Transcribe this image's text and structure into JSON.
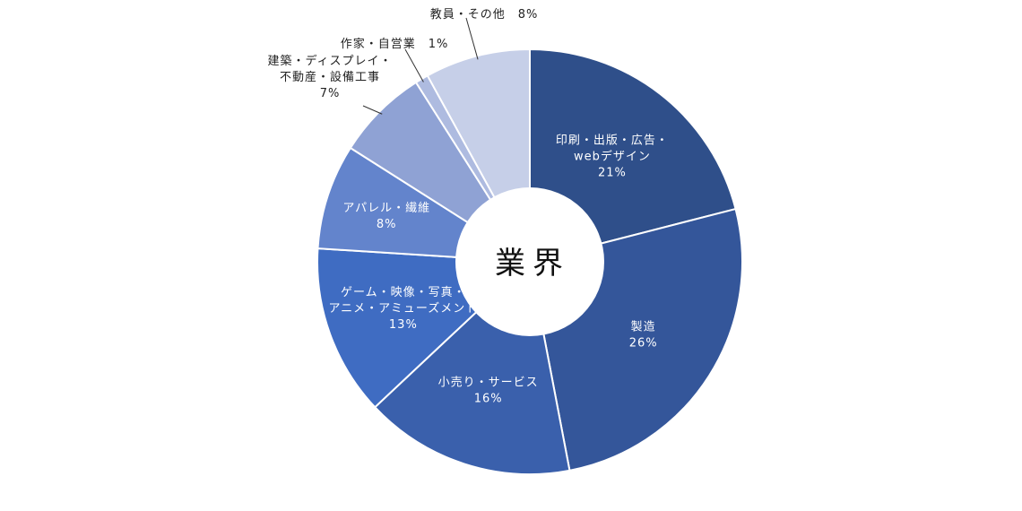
{
  "chart_data": {
    "type": "pie",
    "title": "業界",
    "categories": [
      "印刷・出版・広告・webデザイン",
      "製造",
      "小売り・サービス",
      "ゲーム・映像・写真・アニメ・アミューズメント",
      "アパレル・繊維",
      "建築・ディスプレイ・不動産・設備工事",
      "作家・自営業",
      "教員・その他"
    ],
    "values": [
      21,
      26,
      16,
      13,
      8,
      7,
      1,
      8
    ],
    "value_labels": [
      "21%",
      "26%",
      "16%",
      "13%",
      "8%",
      "7%",
      "1%",
      "8%"
    ],
    "label_lines": [
      [
        "印刷・出版・広告・",
        "webデザイン"
      ],
      [
        "製造"
      ],
      [
        "小売り・サービス"
      ],
      [
        "ゲーム・映像・写真・",
        "アニメ・アミューズメント"
      ],
      [
        "アパレル・繊維"
      ],
      [
        "建築・ディスプレイ・",
        "不動産・設備工事"
      ],
      [
        "作家・自営業"
      ],
      [
        "教員・その他"
      ]
    ],
    "colors": [
      "#2f4f8a",
      "#34569a",
      "#3a60ac",
      "#3f6cc2",
      "#6384cc",
      "#8fa2d4",
      "#aebbe0",
      "#c6cfe8"
    ],
    "donut": true
  }
}
